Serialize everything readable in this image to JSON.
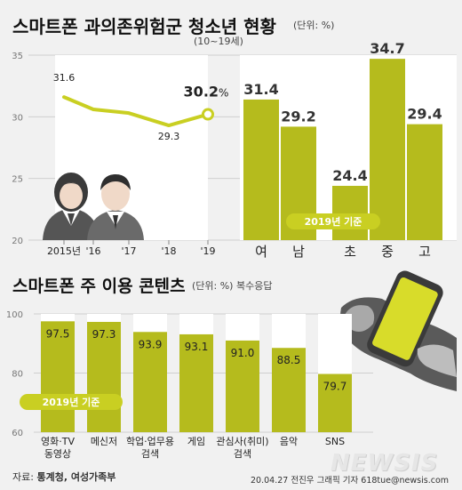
{
  "header": {
    "title": "스마트폰 과의존위험군 청소년 현황",
    "unit": "(단위: %)",
    "age_range": "(10~19세)"
  },
  "section2": {
    "title": "스마트폰 주 이용 콘텐츠",
    "unit": "(단위: %) 복수응답"
  },
  "footer": {
    "source_prefix": "자료: ",
    "source_names": "통계청, 여성가족부",
    "credit": "20.04.27  전진우 그래픽 기자  618tue@newsis.com",
    "logo": "NEWSIS"
  },
  "colors": {
    "bar": "#b5bb1d",
    "accent": "#c9cf22",
    "line": "#c9cf22",
    "panel": "#ffffff",
    "background": "#f1f1f1"
  },
  "icons": [
    "students-icon",
    "hands-smartphone-icon"
  ],
  "chart_data": [
    {
      "type": "line",
      "x": [
        "2015년",
        "'16",
        "'17",
        "'18",
        "'19"
      ],
      "values": [
        31.6,
        30.6,
        30.3,
        29.3,
        30.2
      ],
      "value_labels": [
        "31.6",
        "",
        "",
        "29.3",
        "30.2"
      ],
      "value_label_suffix": "%",
      "ylim": [
        20,
        35
      ],
      "yticks": [
        20,
        25,
        30,
        35
      ]
    },
    {
      "type": "bar",
      "categories": [
        "여",
        "남",
        "초",
        "중",
        "고"
      ],
      "values": [
        31.4,
        29.2,
        24.4,
        34.7,
        29.4
      ],
      "ylim": [
        20,
        35
      ],
      "badge": "2019년 기준"
    },
    {
      "type": "bar",
      "categories": [
        "영화·TV\n동영상",
        "메신저",
        "학업·업무용\n검색",
        "게임",
        "관심사(취미)\n검색",
        "음악",
        "SNS"
      ],
      "values": [
        97.5,
        97.3,
        93.9,
        93.1,
        91.0,
        88.5,
        79.7
      ],
      "value_labels": [
        "97.5",
        "97.3",
        "93.9",
        "93.1",
        "91.0",
        "88.5",
        "79.7"
      ],
      "ylim": [
        60,
        100
      ],
      "yticks": [
        60,
        80,
        100
      ],
      "badge": "2019년 기준"
    }
  ]
}
